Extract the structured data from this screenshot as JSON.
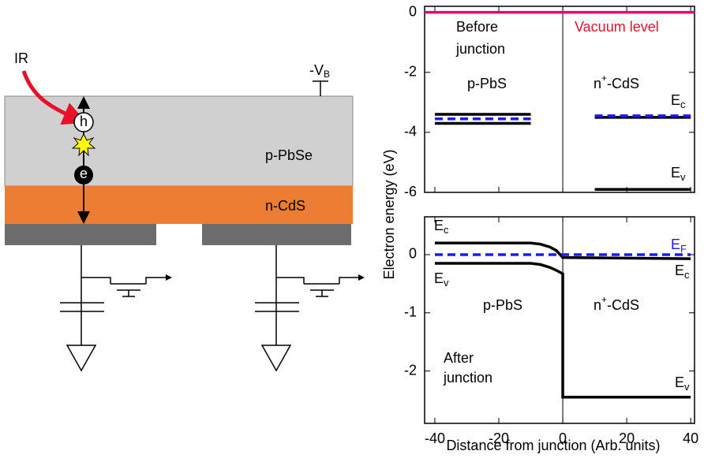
{
  "diagram": {
    "ir": "IR",
    "bias": {
      "text": "-V",
      "sub": "B"
    },
    "hole": "h",
    "electron": "e",
    "layer_top": "p-PbSe",
    "layer_bottom": "n-CdS"
  },
  "chart_data": [
    {
      "type": "line",
      "xlim": [
        -43.2,
        41.2
      ],
      "ylim": [
        -6,
        0.2
      ],
      "xticks": [
        -40,
        -20,
        0,
        20,
        40
      ],
      "yticks": [
        0,
        -2,
        -4,
        -6
      ],
      "vline": 0,
      "annotations": [
        {
          "text": "Before"
        },
        {
          "text": "junction"
        },
        {
          "text": "Vacuum level",
          "color": "#e8102a"
        },
        {
          "text": "p-PbS"
        },
        {
          "text": "n",
          "sup": "+",
          "after": "-CdS"
        },
        {
          "text": "E",
          "sub": "c"
        },
        {
          "text": "E",
          "sub": "v"
        }
      ],
      "series": [
        {
          "color": "#e6007e",
          "x": [
            -43.2,
            41.2
          ],
          "values": [
            0,
            0
          ]
        },
        {
          "color": "#000000",
          "x": [
            -40,
            -10
          ],
          "values": [
            -3.4,
            -3.4
          ]
        },
        {
          "color": "#1a1aff",
          "dashed": true,
          "x": [
            -40,
            -10
          ],
          "values": [
            -3.55,
            -3.55
          ]
        },
        {
          "color": "#000000",
          "x": [
            -40,
            -10
          ],
          "values": [
            -3.7,
            -3.7
          ]
        },
        {
          "color": "#000000",
          "x": [
            10,
            40
          ],
          "values": [
            -3.5,
            -3.5
          ]
        },
        {
          "color": "#1a1aff",
          "dashed": true,
          "x": [
            10,
            40
          ],
          "values": [
            -3.45,
            -3.45
          ]
        },
        {
          "color": "#000000",
          "x": [
            10,
            40
          ],
          "values": [
            -5.9,
            -5.9
          ]
        }
      ]
    },
    {
      "type": "line",
      "xlim": [
        -43.2,
        41.2
      ],
      "ylim": [
        -2.9,
        0.65
      ],
      "xticks": [
        -40,
        -20,
        0,
        20,
        40
      ],
      "yticks": [
        0,
        -1,
        -2
      ],
      "vline": 0,
      "xlabel": "Distance from junction (Arb. units)",
      "ylabel": "Electron energy (eV)",
      "annotations": [
        {
          "text": "E",
          "sub": "c"
        },
        {
          "text": "E",
          "sub": "v"
        },
        {
          "text": "E",
          "sub": "F",
          "color": "#1a1aff"
        },
        {
          "text": "E",
          "sub": "c"
        },
        {
          "text": "p-PbS"
        },
        {
          "text": "n",
          "sup": "+",
          "after": "-CdS"
        },
        {
          "text": "After"
        },
        {
          "text": "junction"
        },
        {
          "text": "E",
          "sub": "v"
        }
      ],
      "series": [
        {
          "color": "#000000",
          "x": [
            -40,
            -10,
            -7,
            -4,
            -2,
            0,
            40
          ],
          "values": [
            0.2,
            0.2,
            0.18,
            0.13,
            0.07,
            -0.05,
            -0.07
          ]
        },
        {
          "color": "#1a1aff",
          "dashed": true,
          "x": [
            -40,
            40
          ],
          "values": [
            0,
            0
          ]
        },
        {
          "color": "#000000",
          "x": [
            -40,
            -10,
            -7,
            -4,
            -2,
            0,
            0,
            40
          ],
          "values": [
            -0.15,
            -0.15,
            -0.17,
            -0.22,
            -0.27,
            -0.33,
            -2.45,
            -2.45
          ]
        }
      ]
    }
  ]
}
